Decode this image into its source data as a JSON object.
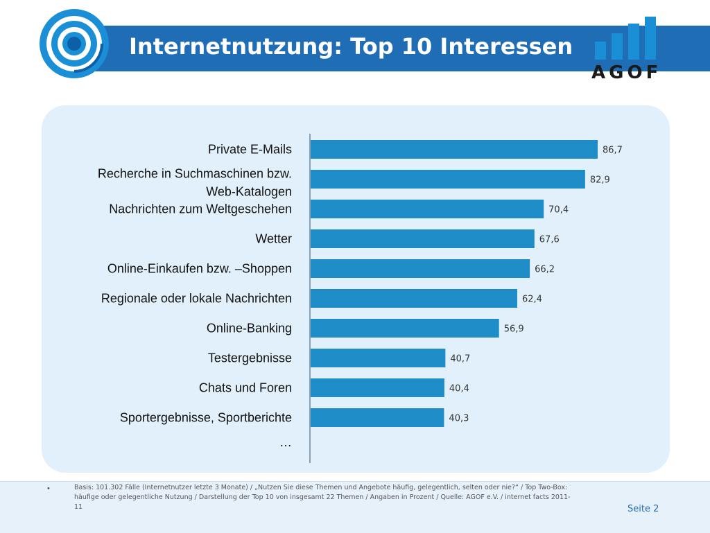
{
  "slide": {
    "title": "Internetnutzung: Top 10 Interessen",
    "logo_text": "AGOF",
    "footnote_bullet": "•",
    "footnote": "Basis: 101.302 Fälle (Internetnutzer letzte 3 Monate) / „Nutzen Sie diese Themen und Angebote häufig, gelegentlich, selten oder nie?“ / Top Two-Box: häufige oder gelegentliche Nutzung / Darstellung der Top 10 von insgesamt 22 Themen / Angaben in Prozent / Quelle: AGOF e.V. / internet facts 2011-11",
    "page_label": "Seite 2",
    "colors": {
      "title_bar": "#1f6db5",
      "bar": "#1d8cc7",
      "panel": "#e1f0fa",
      "logo_blue": "#1a8fd6"
    }
  },
  "chart_data": {
    "type": "bar",
    "orientation": "horizontal",
    "categories": [
      "Private E-Mails",
      "Recherche in Suchmaschinen bzw. Web-Katalogen",
      "Nachrichten zum Weltgeschehen",
      "Wetter",
      "Online-Einkaufen bzw. –Shoppen",
      "Regionale oder lokale Nachrichten",
      "Online-Banking",
      "Testergebnisse",
      "Chats und Foren",
      "Sportergebnisse, Sportberichte"
    ],
    "category_lines": [
      [
        "Private E-Mails"
      ],
      [
        "Recherche in Suchmaschinen bzw.",
        "Web-Katalogen"
      ],
      [
        "Nachrichten zum Weltgeschehen"
      ],
      [
        "Wetter"
      ],
      [
        "Online-Einkaufen bzw. –Shoppen"
      ],
      [
        "Regionale oder lokale Nachrichten"
      ],
      [
        "Online-Banking"
      ],
      [
        "Testergebnisse"
      ],
      [
        "Chats und Foren"
      ],
      [
        "Sportergebnisse, Sportberichte"
      ]
    ],
    "values": [
      86.7,
      82.9,
      70.4,
      67.6,
      66.2,
      62.4,
      56.9,
      40.7,
      40.4,
      40.3
    ],
    "value_labels": [
      "86,7",
      "82,9",
      "70,4",
      "67,6",
      "66,2",
      "62,4",
      "56,9",
      "40,7",
      "40,4",
      "40,3"
    ],
    "trailing_label": "…",
    "xlim": [
      0,
      100
    ],
    "grid": false,
    "legend": "none"
  }
}
